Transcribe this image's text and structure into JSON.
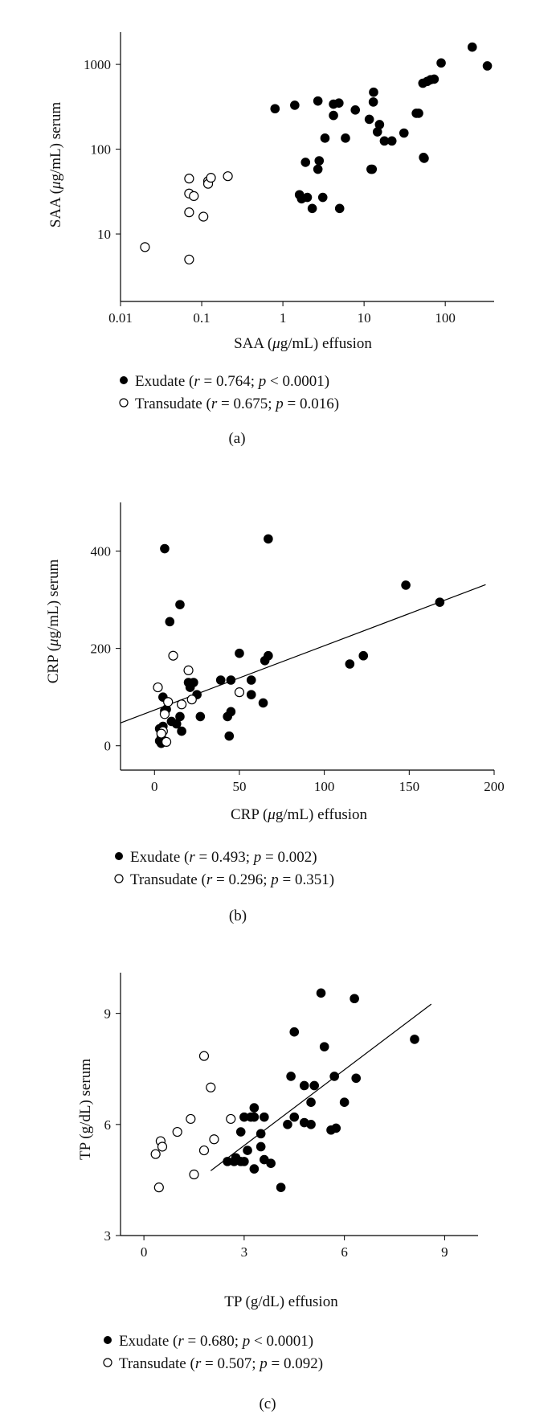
{
  "chart_data": [
    {
      "type": "scatter",
      "xlabel": "SAA (μg/mL) effusion",
      "ylabel": "SAA (μg/mL) serum",
      "xscale": "log",
      "yscale": "log",
      "xlim": [
        0.01,
        400
      ],
      "ylim": [
        1.6,
        2400
      ],
      "xticks": [
        0.01,
        0.1,
        1,
        10,
        100
      ],
      "xticklabels": [
        "0.01",
        "0.1",
        "1",
        "10",
        "100"
      ],
      "yticks": [
        10,
        100,
        1000
      ],
      "yticklabels": [
        "10",
        "100",
        "1000"
      ],
      "grid": false,
      "legend_placement": "below",
      "panel_label": "(a)",
      "regression_line": null,
      "series": [
        {
          "name": "Exudate",
          "stat": "(r = 0.764; p < 0.0001)",
          "marker": "filled",
          "points": [
            [
              0.8,
              300
            ],
            [
              1.4,
              330
            ],
            [
              2.7,
              370
            ],
            [
              4.2,
              340
            ],
            [
              4.9,
              350
            ],
            [
              7.8,
              290
            ],
            [
              4.2,
              250
            ],
            [
              11.6,
              225
            ],
            [
              13,
              360
            ],
            [
              13.1,
              470
            ],
            [
              14.6,
              160
            ],
            [
              15.5,
              195
            ],
            [
              17.8,
              125
            ],
            [
              22,
              125
            ],
            [
              31,
              155
            ],
            [
              44,
              265
            ],
            [
              47,
              265
            ],
            [
              53,
              600
            ],
            [
              60,
              630
            ],
            [
              66,
              660
            ],
            [
              73,
              670
            ],
            [
              89,
              1040
            ],
            [
              215,
              1600
            ],
            [
              330,
              960
            ],
            [
              5.9,
              135
            ],
            [
              3.3,
              135
            ],
            [
              1.9,
              70
            ],
            [
              2.7,
              58
            ],
            [
              2.8,
              73
            ],
            [
              1.6,
              29
            ],
            [
              1.7,
              26
            ],
            [
              2.0,
              27
            ],
            [
              2.3,
              20
            ],
            [
              3.1,
              27
            ],
            [
              5.0,
              20
            ],
            [
              12.2,
              58
            ],
            [
              12.6,
              58
            ],
            [
              54,
              80
            ],
            [
              55,
              78
            ]
          ]
        },
        {
          "name": "Transudate",
          "stat": "(r = 0.675; p = 0.016)",
          "marker": "open",
          "points": [
            [
              0.02,
              7
            ],
            [
              0.07,
              45
            ],
            [
              0.07,
              30
            ],
            [
              0.08,
              28
            ],
            [
              0.07,
              18
            ],
            [
              0.105,
              16
            ],
            [
              0.12,
              42
            ],
            [
              0.12,
              39
            ],
            [
              0.13,
              46
            ],
            [
              0.21,
              48
            ],
            [
              0.07,
              5
            ]
          ]
        }
      ]
    },
    {
      "type": "scatter",
      "xlabel": "CRP (μg/mL) effusion",
      "ylabel": "CRP (μg/mL) serum",
      "xlim": [
        -20,
        200
      ],
      "ylim": [
        -50,
        500
      ],
      "xticks": [
        0,
        50,
        100,
        150,
        200
      ],
      "xticklabels": [
        "0",
        "50",
        "100",
        "150",
        "200"
      ],
      "yticks": [
        0,
        200,
        400
      ],
      "yticklabels": [
        "0",
        "200",
        "400"
      ],
      "grid": false,
      "legend_placement": "below",
      "panel_label": "(b)",
      "regression_line": {
        "x": [
          -20,
          195
        ],
        "y": [
          47,
          331
        ]
      },
      "series": [
        {
          "name": "Exudate",
          "stat": "(r = 0.493; p = 0.002)",
          "marker": "filled",
          "points": [
            [
              6,
              405
            ],
            [
              67,
              425
            ],
            [
              15,
              290
            ],
            [
              9,
              255
            ],
            [
              148,
              330
            ],
            [
              168,
              295
            ],
            [
              50,
              190
            ],
            [
              67,
              185
            ],
            [
              65,
              175
            ],
            [
              115,
              168
            ],
            [
              123,
              185
            ],
            [
              39,
              135
            ],
            [
              45,
              135
            ],
            [
              57,
              135
            ],
            [
              20,
              130
            ],
            [
              23,
              130
            ],
            [
              21,
              120
            ],
            [
              25,
              105
            ],
            [
              57,
              105
            ],
            [
              5,
              100
            ],
            [
              6,
              72
            ],
            [
              7,
              75
            ],
            [
              10,
              50
            ],
            [
              13,
              45
            ],
            [
              15,
              60
            ],
            [
              16,
              30
            ],
            [
              27,
              60
            ],
            [
              43,
              60
            ],
            [
              45,
              70
            ],
            [
              64,
              88
            ],
            [
              44,
              20
            ],
            [
              3,
              10
            ],
            [
              4,
              5
            ],
            [
              4,
              20
            ],
            [
              3,
              35
            ],
            [
              5,
              40
            ]
          ]
        },
        {
          "name": "Transudate",
          "stat": "(r = 0.296; p = 0.351)",
          "marker": "open",
          "points": [
            [
              11,
              185
            ],
            [
              20,
              155
            ],
            [
              2,
              120
            ],
            [
              50,
              110
            ],
            [
              8,
              90
            ],
            [
              16,
              85
            ],
            [
              22,
              95
            ],
            [
              6,
              65
            ],
            [
              5,
              30
            ],
            [
              4,
              25
            ],
            [
              7,
              8
            ]
          ]
        }
      ]
    },
    {
      "type": "scatter",
      "xlabel": "TP (g/dL) effusion",
      "ylabel": "TP (g/dL) serum",
      "xlim": [
        -0.7,
        10
      ],
      "ylim": [
        3,
        10.1
      ],
      "xticks": [
        0,
        3,
        6,
        9
      ],
      "xticklabels": [
        "0",
        "3",
        "6",
        "9"
      ],
      "yticks": [
        3,
        6,
        9
      ],
      "yticklabels": [
        "3",
        "6",
        "9"
      ],
      "grid": false,
      "legend_placement": "below",
      "panel_label": "(c)",
      "regression_line": {
        "x": [
          2,
          8.6
        ],
        "y": [
          4.75,
          9.25
        ]
      },
      "series": [
        {
          "name": "Exudate",
          "stat": "(r = 0.680; p < 0.0001)",
          "marker": "filled",
          "points": [
            [
              5.3,
              9.55
            ],
            [
              6.3,
              9.4
            ],
            [
              4.5,
              8.5
            ],
            [
              5.4,
              8.1
            ],
            [
              8.1,
              8.3
            ],
            [
              4.4,
              7.3
            ],
            [
              4.8,
              7.05
            ],
            [
              5.1,
              7.05
            ],
            [
              5.7,
              7.3
            ],
            [
              6.35,
              7.25
            ],
            [
              3.3,
              6.45
            ],
            [
              3.0,
              6.2
            ],
            [
              3.2,
              6.2
            ],
            [
              3.3,
              6.2
            ],
            [
              3.6,
              6.2
            ],
            [
              4.5,
              6.2
            ],
            [
              5.0,
              6.6
            ],
            [
              4.3,
              6.0
            ],
            [
              4.8,
              6.05
            ],
            [
              5.0,
              6.0
            ],
            [
              5.6,
              5.85
            ],
            [
              5.75,
              5.9
            ],
            [
              6.0,
              6.6
            ],
            [
              2.9,
              5.8
            ],
            [
              3.5,
              5.75
            ],
            [
              3.5,
              5.4
            ],
            [
              3.1,
              5.3
            ],
            [
              2.5,
              5.0
            ],
            [
              2.7,
              5.0
            ],
            [
              2.9,
              5.0
            ],
            [
              2.75,
              5.1
            ],
            [
              3.3,
              4.8
            ],
            [
              3.6,
              5.05
            ],
            [
              3.8,
              4.95
            ],
            [
              4.1,
              4.3
            ],
            [
              3.0,
              5.0
            ]
          ]
        },
        {
          "name": "Transudate",
          "stat": "(r = 0.507; p = 0.092)",
          "marker": "open",
          "points": [
            [
              1.8,
              7.85
            ],
            [
              2.0,
              7.0
            ],
            [
              2.6,
              6.15
            ],
            [
              1.4,
              6.15
            ],
            [
              1.0,
              5.8
            ],
            [
              0.5,
              5.55
            ],
            [
              0.55,
              5.4
            ],
            [
              0.35,
              5.2
            ],
            [
              2.1,
              5.6
            ],
            [
              1.8,
              5.3
            ],
            [
              1.5,
              4.65
            ],
            [
              0.45,
              4.3
            ]
          ]
        }
      ]
    }
  ]
}
